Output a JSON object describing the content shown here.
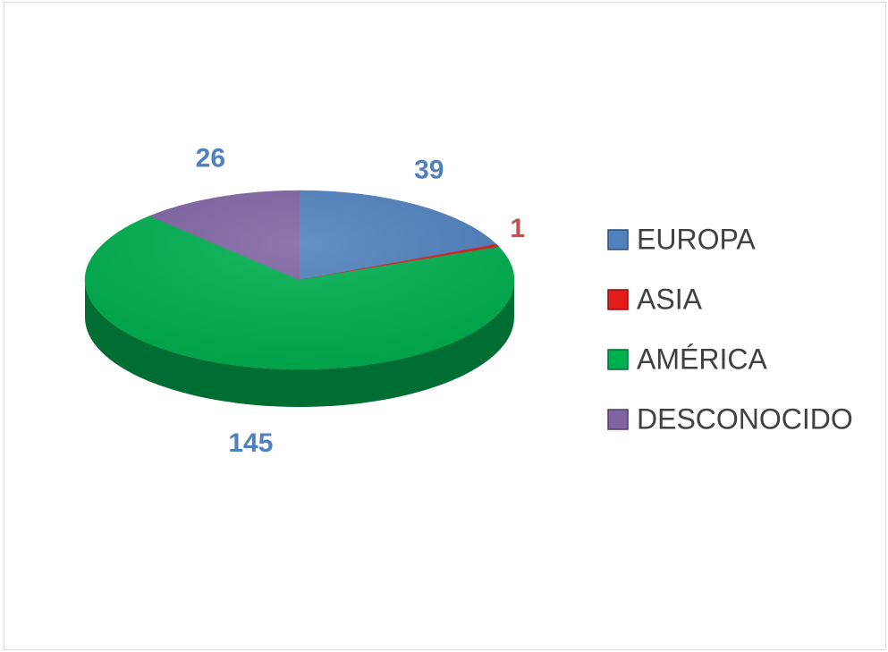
{
  "chart_data": {
    "type": "pie",
    "categories": [
      "EUROPA",
      "ASIA",
      "AMÉRICA",
      "DESCONOCIDO"
    ],
    "values": [
      39,
      1,
      145,
      26
    ],
    "colors": [
      "#4f81bd",
      "#e31b1b",
      "#00b050",
      "#8064a2"
    ],
    "label_colors": [
      "#4f81bd",
      "#c0504d",
      "#4f81bd",
      "#4f81bd"
    ],
    "legend": "right"
  }
}
